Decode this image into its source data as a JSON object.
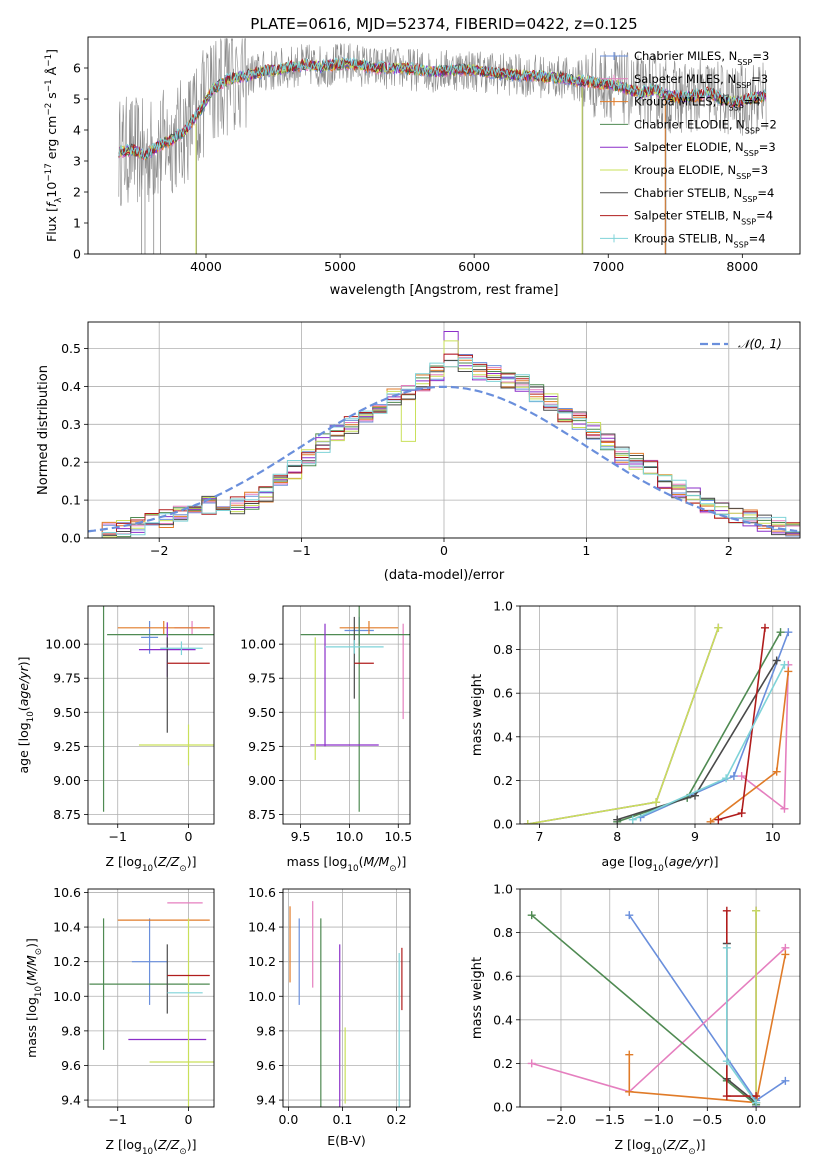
{
  "figure": {
    "title": "PLATE=0616, MJD=52374, FIBERID=0422, z=0.125"
  },
  "colors": {
    "Chabrier MILES": "#6a8fdc",
    "Salpeter MILES": "#b07fd6",
    "Kroupa MILES": "#e07b28",
    "Chabrier ELODIE": "#4f8a52",
    "Salpeter ELODIE": "#8b2fc9",
    "Kroupa ELODIE": "#c9e05a",
    "Chabrier STELIB": "#4a4a4a",
    "Salpeter STELIB": "#b01d1d",
    "Kroupa STELIB": "#7fd3d8",
    "Chabrier MILES hist": "#6a8fdc",
    "Salpeter ELODIE pink": "#e57fbf",
    "gray": "#8a8a8a"
  },
  "chart_data": [
    {
      "id": "spectrum",
      "type": "line",
      "title": "PLATE=0616, MJD=52374, FIBERID=0422, z=0.125",
      "xlabel": "wavelength [Angstrom, rest frame]",
      "ylabel_html": "Flux [f",
      "xlim": [
        3120,
        8430
      ],
      "ylim": [
        0,
        7
      ],
      "xticks": [
        "4000",
        "5000",
        "6000",
        "7000",
        "8000"
      ],
      "xtick_values": [
        4000,
        5000,
        6000,
        7000,
        8000
      ],
      "yticks": [
        "0",
        "1",
        "2",
        "3",
        "4",
        "5",
        "6"
      ],
      "ytick_values": [
        0,
        1,
        2,
        3,
        4,
        5,
        6
      ],
      "legend": [
        {
          "base": "Chabrier MILES, N",
          "sub": "SSP",
          "tail": "=3",
          "color": "#6a8fdc"
        },
        {
          "base": "Salpeter MILES, N",
          "sub": "SSP",
          "tail": "=3",
          "color": "#e57fbf"
        },
        {
          "base": "Kroupa MILES, N",
          "sub": "SSP",
          "tail": "=4",
          "color": "#e07b28"
        },
        {
          "base": "Chabrier ELODIE, N",
          "sub": "SSP",
          "tail": "=2",
          "color": "#4f8a52"
        },
        {
          "base": "Salpeter ELODIE, N",
          "sub": "SSP",
          "tail": "=3",
          "color": "#8b2fc9"
        },
        {
          "base": "Kroupa ELODIE, N",
          "sub": "SSP",
          "tail": "=3",
          "color": "#c9e05a"
        },
        {
          "base": "Chabrier STELIB, N",
          "sub": "SSP",
          "tail": "=4",
          "color": "#4a4a4a"
        },
        {
          "base": "Salpeter STELIB, N",
          "sub": "SSP",
          "tail": "=4",
          "color": "#b01d1d"
        },
        {
          "base": "Kroupa STELIB, N",
          "sub": "SSP",
          "tail": "=4",
          "color": "#7fd3d8"
        }
      ],
      "spectrum_anchor_x": [
        3350,
        3450,
        3550,
        3650,
        3750,
        3850,
        3950,
        4050,
        4150,
        4250,
        4350,
        4450,
        4550,
        4650,
        4750,
        4850,
        4950,
        5050,
        5150,
        5250,
        5350,
        5450,
        5550,
        5650,
        5750,
        5850,
        5950,
        6050,
        6150,
        6250,
        6350,
        6450,
        6550,
        6650,
        6750,
        6850,
        6950,
        7050,
        7150,
        7250,
        7350,
        7450,
        7550,
        7650,
        7750,
        7850,
        7950,
        8050,
        8150
      ],
      "spectrum_anchor_y": [
        3.3,
        3.35,
        3.2,
        3.5,
        3.7,
        4.0,
        4.6,
        5.3,
        5.6,
        5.7,
        5.8,
        5.9,
        5.95,
        6.05,
        6.1,
        6.05,
        6.1,
        6.15,
        6.1,
        6.0,
        6.0,
        6.0,
        5.95,
        5.9,
        5.9,
        5.95,
        5.95,
        5.9,
        5.85,
        5.8,
        5.75,
        5.75,
        5.7,
        5.7,
        5.6,
        5.55,
        5.5,
        5.45,
        5.3,
        5.2,
        5.3,
        5.1,
        5.05,
        5.1,
        5.2,
        5.0,
        4.9,
        5.0,
        5.1
      ]
    },
    {
      "id": "residuals",
      "type": "histogram",
      "xlabel": "(data-model)/error",
      "ylabel": "Normed distribution",
      "xlim": [
        -2.5,
        2.5
      ],
      "ylim": [
        0,
        0.57
      ],
      "xticks": [
        "−2",
        "−1",
        "0",
        "1",
        "2"
      ],
      "xtick_values": [
        -2,
        -1,
        0,
        1,
        2
      ],
      "yticks": [
        "0.0",
        "0.1",
        "0.2",
        "0.3",
        "0.4",
        "0.5"
      ],
      "ytick_values": [
        0,
        0.1,
        0.2,
        0.3,
        0.4,
        0.5
      ],
      "legend_label": "𝒩(0, 1)",
      "bin_width": 0.1,
      "bin_start": -2.5,
      "base_profile": [
        0.015,
        0.02,
        0.025,
        0.03,
        0.04,
        0.05,
        0.06,
        0.07,
        0.085,
        0.09,
        0.085,
        0.1,
        0.12,
        0.15,
        0.18,
        0.21,
        0.25,
        0.28,
        0.3,
        0.31,
        0.34,
        0.37,
        0.39,
        0.41,
        0.44,
        0.47,
        0.46,
        0.44,
        0.43,
        0.42,
        0.41,
        0.38,
        0.36,
        0.33,
        0.31,
        0.28,
        0.25,
        0.22,
        0.2,
        0.18,
        0.15,
        0.13,
        0.11,
        0.09,
        0.07,
        0.06,
        0.05,
        0.04,
        0.03,
        0.02
      ]
    },
    {
      "id": "age-vs-Z",
      "type": "errorbar",
      "xlabel_base": "Z [log",
      "ylabel_base": "age  [log",
      "xlim": [
        -1.42,
        0.36
      ],
      "ylim": [
        8.68,
        10.28
      ],
      "xticks": [
        "−1",
        "0"
      ],
      "xtick_values": [
        -1,
        0
      ],
      "yticks": [
        "8.75",
        "9.00",
        "9.25",
        "9.50",
        "9.75",
        "10.00"
      ],
      "ytick_values": [
        8.75,
        9.0,
        9.25,
        9.5,
        9.75,
        10.0
      ],
      "points": [
        {
          "x": -0.55,
          "y": 10.05,
          "xerr": 0.12,
          "yerr": 0.12,
          "color": "#6a8fdc"
        },
        {
          "x": 0.05,
          "y": 10.12,
          "xerr": 0.25,
          "yerr": 0.05,
          "color": "#e57fbf"
        },
        {
          "x": -0.35,
          "y": 10.12,
          "xerr": 0.65,
          "yerr": 0.05,
          "color": "#e07b28"
        },
        {
          "x": -1.2,
          "y": 10.07,
          "xerr": 0.0,
          "yerr": 1.3,
          "color": "#4f8a52"
        },
        {
          "x": -0.3,
          "y": 10.07,
          "xerr": 0.85,
          "yerr": 0.0,
          "color": "#4f8a52"
        },
        {
          "x": -0.3,
          "y": 9.96,
          "xerr": 0.4,
          "yerr": 0.2,
          "color": "#8b2fc9"
        },
        {
          "x": 0.0,
          "y": 9.26,
          "xerr": 0.7,
          "yerr": 0.15,
          "color": "#c9e05a"
        },
        {
          "x": -0.3,
          "y": 9.7,
          "xerr": 0.0,
          "yerr": 0.35,
          "color": "#4a4a4a"
        },
        {
          "x": 0.0,
          "y": 9.86,
          "xerr": 0.3,
          "yerr": 0.0,
          "color": "#b01d1d"
        },
        {
          "x": -0.1,
          "y": 9.97,
          "xerr": 0.3,
          "yerr": 0.05,
          "color": "#7fd3d8"
        }
      ]
    },
    {
      "id": "age-vs-mass",
      "type": "errorbar",
      "xlabel_base": "mass [log",
      "ylim": [
        8.68,
        10.28
      ],
      "xlim": [
        9.32,
        10.62
      ],
      "xticks": [
        "9.5",
        "10.0",
        "10.5"
      ],
      "xtick_values": [
        9.5,
        10.0,
        10.5
      ],
      "yticks": [
        "8.75",
        "9.00",
        "9.25",
        "9.50",
        "9.75",
        "10.00"
      ],
      "ytick_values": [
        8.75,
        9.0,
        9.25,
        9.5,
        9.75,
        10.0
      ],
      "points": [
        {
          "x": 10.1,
          "y": 10.1,
          "xerr": 0.15,
          "yerr": 0.1,
          "color": "#6a8fdc"
        },
        {
          "x": 10.55,
          "y": 9.8,
          "xerr": 0.0,
          "yerr": 0.35,
          "color": "#e57fbf"
        },
        {
          "x": 10.2,
          "y": 10.12,
          "xerr": 0.3,
          "yerr": 0.05,
          "color": "#e07b28"
        },
        {
          "x": 10.1,
          "y": 10.07,
          "xerr": 0.6,
          "yerr": 1.3,
          "color": "#4f8a52"
        },
        {
          "x": 9.75,
          "y": 9.7,
          "xerr": 0.0,
          "yerr": 0.45,
          "color": "#8b2fc9"
        },
        {
          "x": 9.95,
          "y": 9.26,
          "xerr": 0.35,
          "yerr": 0.0,
          "color": "#8b2fc9"
        },
        {
          "x": 9.65,
          "y": 9.6,
          "xerr": 0.0,
          "yerr": 0.45,
          "color": "#c9e05a"
        },
        {
          "x": 10.05,
          "y": 9.9,
          "xerr": 0.0,
          "yerr": 0.3,
          "color": "#4a4a4a"
        },
        {
          "x": 10.15,
          "y": 9.86,
          "xerr": 0.1,
          "yerr": 0.0,
          "color": "#b01d1d"
        },
        {
          "x": 10.05,
          "y": 9.98,
          "xerr": 0.3,
          "yerr": 0.05,
          "color": "#7fd3d8"
        }
      ]
    },
    {
      "id": "massweight-vs-age",
      "type": "line",
      "xlabel_base": "age  [log",
      "ylabel": "mass weight",
      "xlim": [
        6.75,
        10.35
      ],
      "ylim": [
        0,
        1.0
      ],
      "xticks": [
        "7",
        "8",
        "9",
        "10"
      ],
      "xtick_values": [
        7,
        8,
        9,
        10
      ],
      "yticks": [
        "0.0",
        "0.2",
        "0.4",
        "0.6",
        "0.8",
        "1.0"
      ],
      "ytick_values": [
        0,
        0.2,
        0.4,
        0.6,
        0.8,
        1.0
      ],
      "series": [
        {
          "color": "#6a8fdc",
          "x": [
            8.3,
            9.5,
            10.2
          ],
          "y": [
            0.03,
            0.22,
            0.88
          ]
        },
        {
          "color": "#e57fbf",
          "x": [
            9.6,
            10.15,
            10.2
          ],
          "y": [
            0.22,
            0.07,
            0.73
          ]
        },
        {
          "color": "#e07b28",
          "x": [
            9.2,
            10.05,
            10.2
          ],
          "y": [
            0.01,
            0.24,
            0.7
          ]
        },
        {
          "color": "#4f8a52",
          "x": [
            8.0,
            8.9,
            10.1
          ],
          "y": [
            0.01,
            0.12,
            0.88
          ]
        },
        {
          "color": "#8b2fc9",
          "x": [
            6.85,
            8.5,
            9.3
          ],
          "y": [
            0.0,
            0.1,
            0.9
          ]
        },
        {
          "color": "#c9e05a",
          "x": [
            6.85,
            8.5,
            9.3
          ],
          "y": [
            0.0,
            0.1,
            0.9
          ]
        },
        {
          "color": "#4a4a4a",
          "x": [
            8.0,
            9.0,
            10.05
          ],
          "y": [
            0.02,
            0.13,
            0.75
          ]
        },
        {
          "color": "#b01d1d",
          "x": [
            9.3,
            9.6,
            9.9
          ],
          "y": [
            0.02,
            0.05,
            0.9
          ]
        },
        {
          "color": "#7fd3d8",
          "x": [
            8.2,
            9.4,
            10.15
          ],
          "y": [
            0.02,
            0.21,
            0.73
          ]
        }
      ]
    },
    {
      "id": "mass-vs-Z",
      "type": "errorbar",
      "xlabel_base": "Z [log",
      "ylabel_base": "mass [log",
      "xlim": [
        -1.42,
        0.36
      ],
      "ylim": [
        9.36,
        10.62
      ],
      "xticks": [
        "−1",
        "0"
      ],
      "xtick_values": [
        -1,
        0
      ],
      "yticks": [
        "9.4",
        "9.6",
        "9.8",
        "10.0",
        "10.2",
        "10.4",
        "10.6"
      ],
      "ytick_values": [
        9.4,
        9.6,
        9.8,
        10.0,
        10.2,
        10.4,
        10.6
      ],
      "points": [
        {
          "x": -0.55,
          "y": 10.2,
          "xerr": 0.25,
          "yerr": 0.25,
          "color": "#6a8fdc"
        },
        {
          "x": -0.05,
          "y": 10.54,
          "xerr": 0.25,
          "yerr": 0.0,
          "color": "#e57fbf"
        },
        {
          "x": -0.35,
          "y": 10.44,
          "xerr": 0.65,
          "yerr": 0.0,
          "color": "#e07b28"
        },
        {
          "x": -1.2,
          "y": 10.07,
          "xerr": 0.0,
          "yerr": 0.38,
          "color": "#4f8a52"
        },
        {
          "x": -0.55,
          "y": 10.07,
          "xerr": 0.85,
          "yerr": 0.0,
          "color": "#4f8a52"
        },
        {
          "x": -0.3,
          "y": 9.75,
          "xerr": 0.55,
          "yerr": 0.0,
          "color": "#8b2fc9"
        },
        {
          "x": 0.0,
          "y": 9.62,
          "xerr": 0.55,
          "yerr": 0.0,
          "color": "#c9e05a"
        },
        {
          "x": 0.0,
          "y": 9.9,
          "xerr": 0.0,
          "yerr": 0.55,
          "color": "#c9e05a"
        },
        {
          "x": -0.3,
          "y": 10.1,
          "xerr": 0.0,
          "yerr": 0.2,
          "color": "#4a4a4a"
        },
        {
          "x": 0.0,
          "y": 10.12,
          "xerr": 0.3,
          "yerr": 0.0,
          "color": "#b01d1d"
        },
        {
          "x": -0.05,
          "y": 10.02,
          "xerr": 0.25,
          "yerr": 0.0,
          "color": "#7fd3d8"
        }
      ]
    },
    {
      "id": "mass-vs-EBV",
      "type": "errorbar",
      "xlabel": "E(B-V)",
      "xlim": [
        -0.01,
        0.225
      ],
      "ylim": [
        9.36,
        10.62
      ],
      "xticks": [
        "0.0",
        "0.1",
        "0.2"
      ],
      "xtick_values": [
        0.0,
        0.1,
        0.2
      ],
      "yticks": [
        "9.4",
        "9.6",
        "9.8",
        "10.0",
        "10.2",
        "10.4",
        "10.6"
      ],
      "ytick_values": [
        9.4,
        9.6,
        9.8,
        10.0,
        10.2,
        10.4,
        10.6
      ],
      "points": [
        {
          "x": 0.02,
          "y": 10.2,
          "xerr": 0.0,
          "yerr": 0.25,
          "color": "#6a8fdc"
        },
        {
          "x": 0.045,
          "y": 10.3,
          "xerr": 0.0,
          "yerr": 0.25,
          "color": "#e57fbf"
        },
        {
          "x": 0.003,
          "y": 10.3,
          "xerr": 0.0,
          "yerr": 0.22,
          "color": "#e07b28"
        },
        {
          "x": 0.06,
          "y": 9.9,
          "xerr": 0.0,
          "yerr": 0.55,
          "color": "#4f8a52"
        },
        {
          "x": 0.095,
          "y": 9.8,
          "xerr": 0.0,
          "yerr": 0.5,
          "color": "#8b2fc9"
        },
        {
          "x": 0.105,
          "y": 9.6,
          "xerr": 0.0,
          "yerr": 0.22,
          "color": "#c9e05a"
        },
        {
          "x": 0.205,
          "y": 9.8,
          "xerr": 0.0,
          "yerr": 0.45,
          "color": "#7fd3d8"
        },
        {
          "x": 0.21,
          "y": 10.1,
          "xerr": 0.0,
          "yerr": 0.18,
          "color": "#b01d1d"
        }
      ]
    },
    {
      "id": "massweight-vs-Z",
      "type": "line",
      "xlabel_base": "Z [log",
      "ylabel": "mass weight",
      "xlim": [
        -2.42,
        0.45
      ],
      "ylim": [
        0,
        1.0
      ],
      "xticks": [
        "−2.0",
        "−1.5",
        "−1.0",
        "−0.5",
        "0.0"
      ],
      "xtick_values": [
        -2.0,
        -1.5,
        -1.0,
        -0.5,
        0.0
      ],
      "yticks": [
        "0.0",
        "0.2",
        "0.4",
        "0.6",
        "0.8",
        "1.0"
      ],
      "ytick_values": [
        0,
        0.2,
        0.4,
        0.6,
        0.8,
        1.0
      ],
      "series": [
        {
          "color": "#6a8fdc",
          "x": [
            -1.3,
            0.0,
            0.3
          ],
          "y": [
            0.88,
            0.03,
            0.12
          ]
        },
        {
          "color": "#e57fbf",
          "x": [
            -2.3,
            -1.3,
            0.3
          ],
          "y": [
            0.2,
            0.07,
            0.73
          ]
        },
        {
          "color": "#e07b28",
          "x": [
            -1.3,
            -1.3,
            0.0,
            0.3
          ],
          "y": [
            0.24,
            0.07,
            0.02,
            0.7
          ]
        },
        {
          "color": "#4f8a52",
          "x": [
            -2.3,
            -0.3,
            0.0
          ],
          "y": [
            0.88,
            0.12,
            0.01
          ]
        },
        {
          "color": "#8b2fc9",
          "x": [
            0.0,
            0.0
          ],
          "y": [
            0.0,
            0.9
          ]
        },
        {
          "color": "#c9e05a",
          "x": [
            0.0,
            0.0
          ],
          "y": [
            0.02,
            0.9
          ]
        },
        {
          "color": "#4a4a4a",
          "x": [
            -0.3,
            -0.3,
            0.0
          ],
          "y": [
            0.75,
            0.13,
            0.02
          ]
        },
        {
          "color": "#b01d1d",
          "x": [
            -0.3,
            -0.3,
            0.0
          ],
          "y": [
            0.9,
            0.05,
            0.05
          ]
        },
        {
          "color": "#7fd3d8",
          "x": [
            -0.3,
            -0.3,
            0.0
          ],
          "y": [
            0.73,
            0.21,
            0.02
          ]
        }
      ]
    }
  ]
}
